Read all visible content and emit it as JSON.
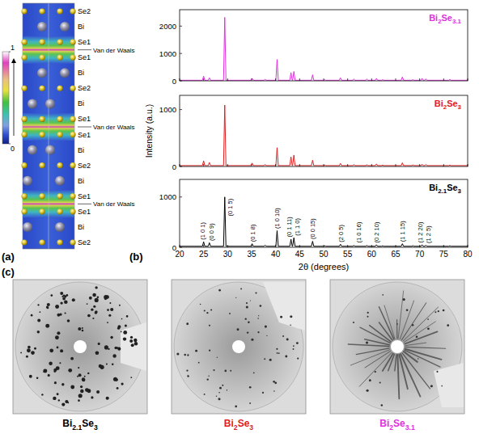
{
  "panel_a": {
    "label": "(a)",
    "colorbar_range": [
      0,
      1
    ],
    "colorbar_ticks": [
      0,
      1
    ],
    "layers": [
      "Se2",
      "Bi",
      "Se1",
      "Se1",
      "Bi",
      "Se2",
      "Bi",
      "Se1",
      "Se1",
      "Bi",
      "Se2",
      "Bi",
      "Se1",
      "Se1",
      "Bi",
      "Se2"
    ],
    "gap_labels": [
      "Van der Waals",
      "Van der Waals",
      "Van der Waals"
    ]
  },
  "panel_b": {
    "label": "(b)"
  },
  "chart_data": [
    {
      "type": "line",
      "legend": "upper right",
      "tick_labels": "y",
      "xlim": [
        20,
        80
      ],
      "xticks": [
        20,
        25,
        30,
        35,
        40,
        45,
        50,
        55,
        60,
        65,
        70,
        75,
        80
      ],
      "ylim": [
        0,
        2600
      ],
      "yticks": [
        0,
        1000,
        2000
      ],
      "x": [
        20,
        24.75,
        25,
        25.25,
        25.95,
        26.2,
        26.45,
        29.15,
        29.4,
        29.65,
        34.85,
        35.1,
        35.35,
        37.55,
        37.8,
        38.05,
        40.05,
        40.3,
        40.55,
        42.95,
        43.2,
        43.45,
        43.55,
        43.8,
        44.05,
        47.45,
        47.7,
        47.95,
        49.95,
        50.2,
        50.45,
        53.25,
        53.5,
        53.75,
        56.05,
        56.3,
        56.55,
        58.75,
        59,
        59.25,
        60.75,
        61,
        61.25,
        62.05,
        62.3,
        62.55,
        66.15,
        66.4,
        66.65,
        68.35,
        68.6,
        68.85,
        70.25,
        70.5,
        70.75,
        71.05,
        71.3,
        71.55,
        76.05,
        76.3,
        76.55,
        80
      ],
      "series": [
        {
          "name": "Bi2Se3.1",
          "color": "#e030e0",
          "values": [
            20,
            20,
            170,
            20,
            20,
            110,
            20,
            20,
            2320,
            20,
            20,
            90,
            20,
            20,
            50,
            20,
            20,
            780,
            20,
            20,
            300,
            20,
            20,
            340,
            20,
            20,
            220,
            20,
            20,
            40,
            20,
            20,
            110,
            20,
            20,
            60,
            20,
            20,
            60,
            20,
            20,
            90,
            20,
            20,
            40,
            20,
            20,
            140,
            20,
            20,
            40,
            20,
            20,
            90,
            20,
            20,
            70,
            20,
            20,
            50,
            20,
            20
          ]
        }
      ]
    },
    {
      "type": "line",
      "legend": "upper right",
      "tick_labels": "y",
      "y_label": "Intensity (a.u.)",
      "xlim": [
        20,
        80
      ],
      "xticks": [
        20,
        25,
        30,
        35,
        40,
        45,
        50,
        55,
        60,
        65,
        70,
        75,
        80
      ],
      "ylim": [
        0,
        1250
      ],
      "yticks": [
        0,
        1000
      ],
      "x": [
        20,
        24.75,
        25,
        25.25,
        25.95,
        26.2,
        26.45,
        29.15,
        29.4,
        29.65,
        34.85,
        35.1,
        35.35,
        37.55,
        37.8,
        38.05,
        40.05,
        40.3,
        40.55,
        42.95,
        43.2,
        43.45,
        43.55,
        43.8,
        44.05,
        47.45,
        47.7,
        47.95,
        49.95,
        50.2,
        50.45,
        53.25,
        53.5,
        53.75,
        56.05,
        56.3,
        56.55,
        58.75,
        59,
        59.25,
        60.75,
        61,
        61.25,
        62.05,
        62.3,
        62.55,
        66.15,
        66.4,
        66.65,
        68.35,
        68.6,
        68.85,
        70.25,
        70.5,
        70.75,
        71.05,
        71.3,
        71.55,
        76.05,
        76.3,
        76.55,
        80
      ],
      "series": [
        {
          "name": "Bi2Se3",
          "color": "#e02020",
          "values": [
            15,
            15,
            100,
            15,
            15,
            70,
            15,
            15,
            1080,
            15,
            15,
            60,
            15,
            15,
            35,
            15,
            15,
            330,
            15,
            15,
            170,
            15,
            15,
            200,
            15,
            15,
            110,
            15,
            15,
            25,
            15,
            15,
            55,
            15,
            15,
            35,
            15,
            15,
            30,
            15,
            15,
            45,
            15,
            15,
            25,
            15,
            15,
            65,
            15,
            15,
            25,
            15,
            15,
            40,
            15,
            15,
            35,
            15,
            15,
            25,
            15,
            15
          ]
        }
      ]
    },
    {
      "type": "line",
      "legend": "upper right",
      "tick_labels": true,
      "x_label": "2θ (degrees)",
      "xlim": [
        20,
        80
      ],
      "xticks": [
        20,
        25,
        30,
        35,
        40,
        45,
        50,
        55,
        60,
        65,
        70,
        75,
        80
      ],
      "ylim": [
        0,
        1350
      ],
      "yticks": [
        0,
        1000
      ],
      "x": [
        20,
        24.75,
        25,
        25.25,
        25.95,
        26.2,
        26.45,
        29.15,
        29.4,
        29.65,
        34.85,
        35.1,
        35.35,
        37.55,
        37.8,
        38.05,
        40.05,
        40.3,
        40.55,
        42.95,
        43.2,
        43.45,
        43.55,
        43.8,
        44.05,
        47.45,
        47.7,
        47.95,
        49.95,
        50.2,
        50.45,
        53.25,
        53.5,
        53.75,
        56.05,
        56.3,
        56.55,
        58.75,
        59,
        59.25,
        60.75,
        61,
        61.25,
        62.05,
        62.3,
        62.55,
        66.15,
        66.4,
        66.65,
        68.35,
        68.6,
        68.85,
        70.25,
        70.5,
        70.75,
        71.05,
        71.3,
        71.55,
        76.05,
        76.3,
        76.55,
        80
      ],
      "series": [
        {
          "name": "Bi2.1Se3",
          "color": "#000000",
          "values": [
            20,
            20,
            110,
            20,
            20,
            90,
            20,
            20,
            1000,
            20,
            20,
            70,
            20,
            20,
            40,
            20,
            20,
            330,
            20,
            20,
            160,
            20,
            20,
            190,
            20,
            20,
            120,
            20,
            20,
            30,
            20,
            20,
            60,
            20,
            20,
            35,
            20,
            20,
            35,
            20,
            20,
            50,
            20,
            20,
            30,
            20,
            20,
            70,
            20,
            20,
            30,
            20,
            20,
            50,
            20,
            20,
            40,
            20,
            20,
            30,
            20,
            20
          ]
        }
      ],
      "annotations": [
        {
          "text": "(1 0 1)",
          "x": 24.8,
          "y": 150
        },
        {
          "text": "(0 0 9)",
          "x": 26.5,
          "y": 130
        },
        {
          "text": "(0 1 5)",
          "x": 30.4,
          "y": 620
        },
        {
          "text": "(0 1 8)",
          "x": 35.1,
          "y": 110
        },
        {
          "text": "(1 0 10)",
          "x": 40.3,
          "y": 370
        },
        {
          "text": "(0 1 11)",
          "x": 42.7,
          "y": 200
        },
        {
          "text": "(1 1 0)",
          "x": 44.4,
          "y": 230
        },
        {
          "text": "(0 0 15)",
          "x": 47.7,
          "y": 160
        },
        {
          "text": "(2 0 5)",
          "x": 53.5,
          "y": 100
        },
        {
          "text": "(1 0 16)",
          "x": 57.2,
          "y": 90
        },
        {
          "text": "(0 2 10)",
          "x": 61.0,
          "y": 90
        },
        {
          "text": "(1 1 15)",
          "x": 66.4,
          "y": 110
        },
        {
          "text": "(1 2 20)",
          "x": 70.1,
          "y": 90
        },
        {
          "text": "(1 2 5)",
          "x": 71.8,
          "y": 80
        }
      ]
    }
  ],
  "panel_c": {
    "label": "(c)",
    "samples": [
      {
        "name": "Bi2.1Se3",
        "color": "#000000"
      },
      {
        "name": "Bi2Se3",
        "color": "#e02020"
      },
      {
        "name": "Bi2Se3.1",
        "color": "#e030e0"
      }
    ]
  }
}
